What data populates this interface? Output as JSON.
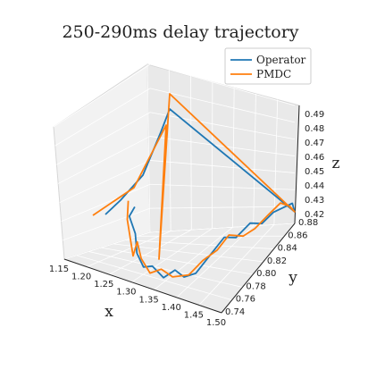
{
  "chart_data": {
    "type": "line",
    "projection": "3d",
    "title": "250-290ms delay trajectory",
    "xlabel": "x",
    "ylabel": "y",
    "zlabel": "z",
    "xlim": [
      1.15,
      1.5
    ],
    "ylim": [
      0.73,
      0.88
    ],
    "zlim": [
      0.415,
      0.495
    ],
    "x_ticks": [
      "1.15",
      "1.20",
      "1.25",
      "1.30",
      "1.35",
      "1.40",
      "1.45",
      "1.50"
    ],
    "y_ticks": [
      "0.74",
      "0.76",
      "0.78",
      "0.80",
      "0.82",
      "0.84",
      "0.86",
      "0.88"
    ],
    "z_ticks": [
      "0.42",
      "0.43",
      "0.44",
      "0.45",
      "0.46",
      "0.47",
      "0.48",
      "0.49"
    ],
    "grid": true,
    "legend_position": "top-right",
    "series": [
      {
        "name": "Operator",
        "color": "#1f77b4",
        "points": [
          [
            1.22,
            0.81,
            0.425
          ],
          [
            1.235,
            0.785,
            0.43
          ],
          [
            1.27,
            0.765,
            0.43
          ],
          [
            1.29,
            0.75,
            0.425
          ],
          [
            1.31,
            0.745,
            0.42
          ],
          [
            1.335,
            0.74,
            0.425
          ],
          [
            1.36,
            0.74,
            0.42
          ],
          [
            1.38,
            0.745,
            0.425
          ],
          [
            1.395,
            0.75,
            0.42
          ],
          [
            1.41,
            0.76,
            0.42
          ],
          [
            1.42,
            0.78,
            0.425
          ],
          [
            1.43,
            0.8,
            0.43
          ],
          [
            1.44,
            0.815,
            0.425
          ],
          [
            1.455,
            0.83,
            0.43
          ],
          [
            1.465,
            0.845,
            0.425
          ],
          [
            1.48,
            0.855,
            0.43
          ],
          [
            1.49,
            0.865,
            0.43
          ],
          [
            1.5,
            0.875,
            0.43
          ],
          [
            1.505,
            0.875,
            0.425
          ]
        ]
      },
      {
        "name": "PMDC",
        "color": "#ff7f0e",
        "points": [
          [
            1.2,
            0.815,
            0.425
          ],
          [
            1.225,
            0.79,
            0.425
          ],
          [
            1.265,
            0.765,
            0.415
          ],
          [
            1.285,
            0.755,
            0.43
          ],
          [
            1.305,
            0.745,
            0.425
          ],
          [
            1.33,
            0.74,
            0.42
          ],
          [
            1.355,
            0.74,
            0.425
          ],
          [
            1.375,
            0.745,
            0.42
          ],
          [
            1.4,
            0.755,
            0.42
          ],
          [
            1.415,
            0.77,
            0.425
          ],
          [
            1.425,
            0.79,
            0.425
          ],
          [
            1.435,
            0.805,
            0.43
          ],
          [
            1.45,
            0.82,
            0.425
          ],
          [
            1.46,
            0.835,
            0.425
          ],
          [
            1.475,
            0.85,
            0.43
          ],
          [
            1.49,
            0.86,
            0.435
          ],
          [
            1.5,
            0.87,
            0.43
          ],
          [
            1.505,
            0.875,
            0.425
          ]
        ]
      }
    ]
  }
}
